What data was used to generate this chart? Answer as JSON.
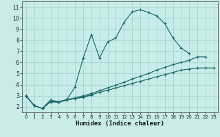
{
  "xlabel": "Humidex (Indice chaleur)",
  "bg_color": "#c8ece9",
  "grid_color": "#a8d8d4",
  "line_color": "#1a6b6b",
  "xlim": [
    -0.5,
    23.5
  ],
  "ylim": [
    1.5,
    11.5
  ],
  "xticks": [
    0,
    1,
    2,
    3,
    4,
    5,
    6,
    7,
    8,
    9,
    10,
    11,
    12,
    13,
    14,
    15,
    16,
    17,
    18,
    19,
    20,
    21,
    22,
    23
  ],
  "yticks": [
    2,
    3,
    4,
    5,
    6,
    7,
    8,
    9,
    10,
    11
  ],
  "series": [
    {
      "x": [
        0,
        1,
        2,
        3,
        4,
        5,
        6,
        7,
        8,
        9,
        10,
        11,
        12,
        13,
        14,
        15,
        16,
        17,
        18,
        19,
        20
      ],
      "y": [
        3.0,
        2.1,
        1.85,
        2.6,
        2.45,
        2.65,
        3.8,
        6.4,
        8.5,
        6.4,
        7.85,
        8.2,
        9.6,
        10.55,
        10.75,
        10.5,
        10.2,
        9.5,
        8.2,
        7.3,
        6.8
      ]
    },
    {
      "x": [
        0,
        1,
        2,
        3,
        4,
        5,
        6,
        7,
        8
      ],
      "y": [
        3.0,
        2.1,
        1.85,
        2.6,
        2.45,
        2.65,
        2.75,
        2.85,
        3.05
      ]
    },
    {
      "x": [
        0,
        1,
        2,
        3,
        4,
        5,
        6,
        7,
        8,
        9,
        10,
        11,
        12,
        13,
        14,
        15,
        16,
        17,
        18,
        19,
        20,
        21,
        22
      ],
      "y": [
        3.0,
        2.1,
        1.85,
        2.45,
        2.45,
        2.65,
        2.8,
        3.0,
        3.2,
        3.45,
        3.7,
        3.95,
        4.2,
        4.5,
        4.75,
        5.0,
        5.3,
        5.55,
        5.8,
        6.0,
        6.2,
        6.5,
        6.5
      ]
    },
    {
      "x": [
        0,
        1,
        2,
        3,
        4,
        5,
        6,
        7,
        8,
        9,
        10,
        11,
        12,
        13,
        14,
        15,
        16,
        17,
        18,
        19,
        20,
        21,
        22,
        23
      ],
      "y": [
        3.0,
        2.1,
        1.85,
        2.45,
        2.4,
        2.6,
        2.75,
        2.9,
        3.1,
        3.3,
        3.5,
        3.7,
        3.9,
        4.1,
        4.3,
        4.5,
        4.7,
        4.9,
        5.1,
        5.3,
        5.4,
        5.5,
        5.5,
        5.5
      ]
    }
  ]
}
